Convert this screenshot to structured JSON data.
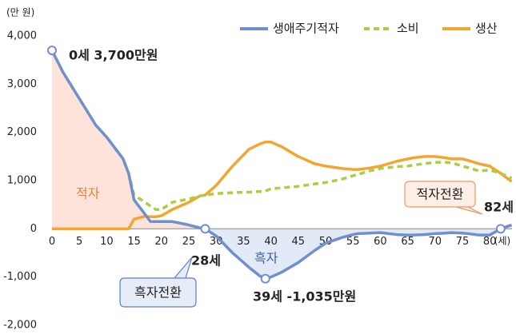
{
  "chart_data": {
    "type": "line",
    "y_label": "(만 원)",
    "x_label": "(세)",
    "x": [
      0,
      2,
      5,
      8,
      10,
      13,
      14,
      15,
      17,
      18,
      19,
      20,
      22,
      25,
      27,
      28,
      30,
      33,
      36,
      38,
      39,
      40,
      42,
      45,
      48,
      50,
      53,
      55,
      56,
      58,
      60,
      63,
      65,
      66,
      68,
      70,
      72,
      73,
      75,
      76,
      78,
      80,
      82,
      84
    ],
    "series": [
      {
        "name": "생애주기적자",
        "color": "#6f8fcf",
        "dash": false,
        "values": [
          3700,
          3250,
          2700,
          2150,
          1900,
          1450,
          1150,
          600,
          300,
          150,
          150,
          150,
          150,
          80,
          20,
          0,
          -150,
          -500,
          -800,
          -980,
          -1035,
          -1000,
          -900,
          -700,
          -450,
          -300,
          -180,
          -120,
          -100,
          -90,
          -80,
          -120,
          -130,
          -130,
          -120,
          -100,
          -90,
          -80,
          -90,
          -100,
          -130,
          -130,
          0,
          80
        ]
      },
      {
        "name": "소비",
        "color": "#a8cf45",
        "dash": true,
        "values": [
          3700,
          3250,
          2700,
          2150,
          1900,
          1450,
          1150,
          700,
          550,
          470,
          400,
          400,
          550,
          620,
          680,
          700,
          730,
          750,
          760,
          775,
          780,
          830,
          850,
          880,
          930,
          960,
          1030,
          1100,
          1130,
          1200,
          1250,
          1290,
          1300,
          1320,
          1350,
          1380,
          1380,
          1370,
          1300,
          1270,
          1200,
          1220,
          1150,
          1050
        ]
      },
      {
        "name": "생산",
        "color": "#f4a52e",
        "dash": false,
        "values": [
          0,
          0,
          0,
          0,
          0,
          0,
          0,
          200,
          260,
          250,
          250,
          270,
          400,
          550,
          680,
          700,
          900,
          1300,
          1650,
          1760,
          1800,
          1800,
          1700,
          1500,
          1350,
          1300,
          1250,
          1230,
          1230,
          1260,
          1300,
          1400,
          1450,
          1470,
          1500,
          1500,
          1470,
          1450,
          1450,
          1420,
          1350,
          1300,
          1150,
          980
        ]
      }
    ],
    "xlim": [
      0,
      84
    ],
    "ylim": [
      -2000,
      4000
    ],
    "xticks": [
      0,
      5,
      10,
      15,
      20,
      25,
      30,
      35,
      40,
      45,
      50,
      55,
      60,
      65,
      70,
      75,
      80
    ],
    "yticks": [
      {
        "value": 4000,
        "label": "4,000"
      },
      {
        "value": 3000,
        "label": "3,000"
      },
      {
        "value": 2000,
        "label": "2,000"
      },
      {
        "value": 1000,
        "label": "1,000"
      },
      0,
      {
        "value": -1000,
        "label": "-1,000"
      },
      {
        "value": -2000,
        "label": "-2,000"
      }
    ],
    "legend": "top-right",
    "area_colors": {
      "positive": "#fde3d9",
      "negative": "#e2eaf7"
    },
    "point_labels": [
      {
        "text": "0세 3,700만원",
        "x": 0,
        "y": 3700
      },
      {
        "text": "28세",
        "x": 28,
        "y": 0
      },
      {
        "text": "39세 -1,035만원",
        "x": 39,
        "y": -1035
      },
      {
        "text": "82세",
        "x": 82,
        "y": 0
      }
    ],
    "callouts": [
      "흑자전환",
      "적자전환"
    ],
    "region_labels": [
      "적자",
      "흑자"
    ]
  }
}
